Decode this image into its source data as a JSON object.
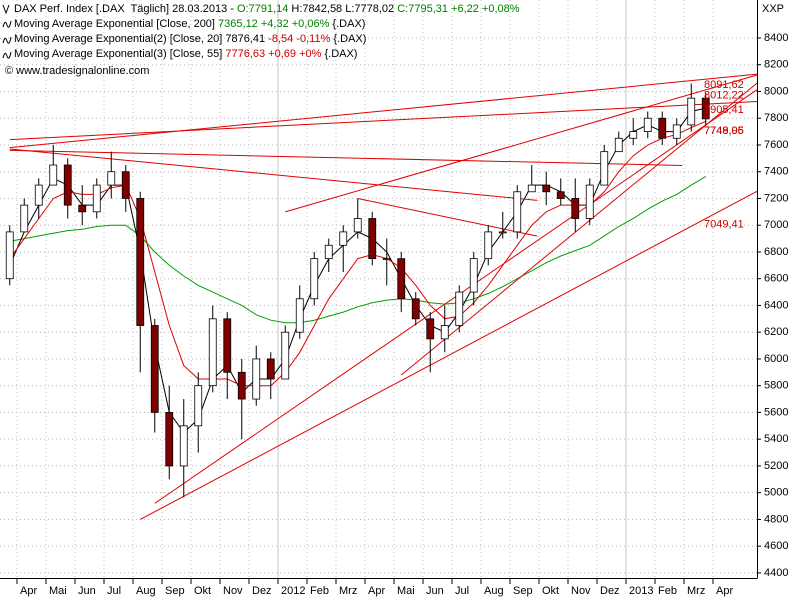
{
  "chart_data": {
    "type": "candlestick",
    "header": [
      {
        "text": "DAX Perf. Index [.DAX  Täglich] 28.03.2013 - ",
        "color": "#000000"
      },
      {
        "text": "O:7791,14",
        "color": "#008000"
      },
      {
        "text": " H:7842,58 L:7778,02 ",
        "color": "#000000"
      },
      {
        "text": "C:7795,31 +6,22 +0,08%",
        "color": "#008000"
      }
    ],
    "source": "© www.tradesignalonline.com",
    "axis_label": "XXP",
    "categories": [
      null,
      "Apr",
      null,
      "Mai",
      null,
      "Jun",
      null,
      "Jul",
      null,
      "Aug",
      null,
      "Sep",
      null,
      "Okt",
      null,
      "Nov",
      null,
      "Dez",
      null,
      "2012",
      null,
      "Feb",
      null,
      "Mrz",
      null,
      "Apr",
      null,
      "Mai",
      null,
      "Jun",
      null,
      "Jul",
      null,
      "Aug",
      null,
      "Sep",
      null,
      "Okt",
      null,
      "Nov",
      null,
      "Dez",
      null,
      "2013",
      null,
      "Feb",
      null,
      "Mrz",
      null,
      "Apr",
      null
    ],
    "open": [
      6600,
      6950,
      7150,
      7300,
      7450,
      7150,
      7100,
      7300,
      7400,
      7200,
      6250,
      5600,
      5200,
      5500,
      5800,
      6300,
      5900,
      5700,
      6000,
      5850,
      6200,
      6450,
      6750,
      6850,
      6950,
      7050,
      6750,
      6750,
      6450,
      6300,
      6150,
      6250,
      6500,
      6750,
      6950,
      6950,
      7250,
      7300,
      7250,
      7200,
      7050,
      7300,
      7550,
      7650,
      7700,
      7800,
      7650,
      7750,
      7950,
      null,
      null
    ],
    "high": [
      7000,
      7200,
      7350,
      7600,
      7500,
      7300,
      7350,
      7550,
      7450,
      7250,
      6300,
      5800,
      5700,
      5900,
      6400,
      6350,
      6000,
      6100,
      6050,
      6250,
      6550,
      6800,
      6900,
      7000,
      7200,
      7100,
      6900,
      6800,
      6500,
      6350,
      6400,
      6550,
      6800,
      7000,
      7100,
      7300,
      7450,
      7400,
      7350,
      7350,
      7350,
      7600,
      7700,
      7800,
      7850,
      7850,
      7800,
      8060,
      7990,
      null,
      null
    ],
    "low": [
      6550,
      6950,
      7050,
      7300,
      7050,
      7000,
      7050,
      7200,
      7100,
      5900,
      5450,
      5100,
      4965,
      5300,
      5750,
      5700,
      5400,
      5650,
      5700,
      5850,
      6150,
      6400,
      6650,
      6650,
      6900,
      6700,
      6550,
      6350,
      6250,
      5900,
      6050,
      6200,
      6400,
      6700,
      6900,
      6900,
      7250,
      7150,
      7150,
      6950,
      7000,
      7300,
      7550,
      7600,
      7650,
      7600,
      7600,
      7700,
      7750,
      null,
      null
    ],
    "close": [
      6950,
      7150,
      7300,
      7450,
      7150,
      7100,
      7300,
      7400,
      7200,
      6250,
      5600,
      5200,
      5500,
      5800,
      6300,
      5900,
      5700,
      6000,
      5850,
      6200,
      6450,
      6750,
      6850,
      6950,
      7050,
      6750,
      6750,
      6450,
      6300,
      6150,
      6250,
      6500,
      6750,
      6950,
      6950,
      7250,
      7300,
      7250,
      7200,
      7050,
      7300,
      7550,
      7650,
      7700,
      7800,
      7650,
      7750,
      7950,
      7795,
      null,
      null
    ],
    "up_color": "#ffffff",
    "down_color": "#800000",
    "series": [
      {
        "name": "Moving Average Exponential [Close, 200]",
        "color": "#00a000",
        "legend_parts": [
          {
            "text": " 7365,12 +4,32 +0,06%",
            "color": "#008000"
          },
          {
            "text": " {.DAX)",
            "color": "#000000"
          }
        ],
        "values": [
          6880,
          6900,
          6920,
          6940,
          6960,
          6970,
          6990,
          7000,
          7000,
          6920,
          6800,
          6700,
          6620,
          6550,
          6500,
          6450,
          6400,
          6330,
          6290,
          6270,
          6270,
          6290,
          6320,
          6350,
          6390,
          6420,
          6440,
          6450,
          6440,
          6420,
          6410,
          6420,
          6450,
          6490,
          6540,
          6600,
          6660,
          6720,
          6770,
          6810,
          6850,
          6920,
          6990,
          7050,
          7120,
          7180,
          7230,
          7300,
          7365,
          null,
          null
        ]
      },
      {
        "name": "Moving Average Exponential(2) [Close, 20]",
        "color": "#000000",
        "legend_parts": [
          {
            "text": " 7876,41 ",
            "color": "#000000"
          },
          {
            "text": "-8,54 -0,11%",
            "color": "#cc0000"
          },
          {
            "text": " {.DAX)",
            "color": "#000000"
          }
        ],
        "values": [
          6700,
          6950,
          7150,
          7350,
          7300,
          7150,
          7150,
          7300,
          7300,
          6800,
          6100,
          5600,
          5450,
          5550,
          5850,
          5950,
          5750,
          5850,
          5850,
          6000,
          6300,
          6550,
          6750,
          6850,
          6950,
          6900,
          6800,
          6600,
          6400,
          6250,
          6200,
          6350,
          6550,
          6800,
          6950,
          7100,
          7300,
          7300,
          7250,
          7150,
          7150,
          7400,
          7600,
          7700,
          7750,
          7700,
          7700,
          7850,
          7876,
          null,
          null
        ]
      },
      {
        "name": "Moving Average Exponential(3) [Close, 55]",
        "color": "#e00000",
        "legend_parts": [
          {
            "text": " 7776,63 +0,69 +0%",
            "color": "#cc0000"
          },
          {
            "text": " {.DAX)",
            "color": "#000000"
          }
        ],
        "values": [
          6750,
          6900,
          7050,
          7200,
          7250,
          7230,
          7230,
          7280,
          7300,
          7050,
          6650,
          6250,
          5950,
          5850,
          5850,
          5850,
          5800,
          5800,
          5800,
          5900,
          6050,
          6250,
          6450,
          6600,
          6750,
          6780,
          6750,
          6680,
          6550,
          6400,
          6300,
          6320,
          6420,
          6550,
          6700,
          6850,
          7000,
          7100,
          7150,
          7150,
          7150,
          7250,
          7400,
          7520,
          7600,
          7650,
          7680,
          7730,
          7777,
          null,
          null
        ]
      }
    ],
    "trendlines": [
      {
        "color": "#e00000",
        "points": [
          [
            0,
            7580
          ],
          [
            48,
            8091.62
          ]
        ],
        "value_label": "8091,62"
      },
      {
        "color": "#e00000",
        "points": [
          [
            19,
            7100
          ],
          [
            48,
            8012.22
          ]
        ],
        "value_label": "8012,22"
      },
      {
        "color": "#e00000",
        "points": [
          [
            0,
            7640
          ],
          [
            48,
            7905.41
          ]
        ],
        "value_label": "7905,41"
      },
      {
        "color": "#e00000",
        "points": [
          [
            10,
            4920
          ],
          [
            48,
            7749.95
          ]
        ],
        "value_label": "7749,95"
      },
      {
        "color": "#e00000",
        "points": [
          [
            27,
            5880
          ],
          [
            48,
            7748.06
          ]
        ],
        "value_label": "7748,06"
      },
      {
        "color": "#e00000",
        "points": [
          [
            9,
            4800
          ],
          [
            48,
            7049.41
          ]
        ],
        "value_label": "7049,41"
      },
      {
        "color": "#e00000",
        "points": [
          [
            0,
            7570
          ],
          [
            35,
            7200
          ]
        ]
      },
      {
        "color": "#e00000",
        "points": [
          [
            24,
            7200
          ],
          [
            35,
            6950
          ]
        ]
      },
      {
        "color": "#e00000",
        "points": [
          [
            0,
            7560
          ],
          [
            45,
            7450
          ]
        ]
      }
    ],
    "ylim": [
      4362,
      8684
    ],
    "yticks": [
      4400,
      4600,
      4800,
      5000,
      5200,
      5400,
      5600,
      5800,
      6000,
      6200,
      6400,
      6600,
      6800,
      7000,
      7200,
      7400,
      7600,
      7800,
      8000,
      8200,
      8400
    ],
    "grid": true
  }
}
